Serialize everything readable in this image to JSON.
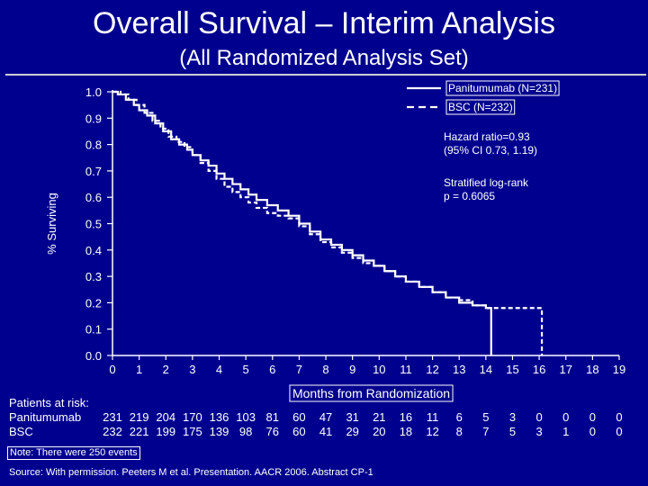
{
  "slide": {
    "title": "Overall Survival – Interim Analysis",
    "subtitle": "(All Randomized Analysis Set)",
    "background": "#00008f"
  },
  "chart_data": {
    "type": "line",
    "xlabel": "Months from Randomization",
    "ylabel": "% Surviving",
    "xlim": [
      0,
      19
    ],
    "ylim": [
      0.0,
      1.0
    ],
    "x_ticks": [
      0,
      1,
      2,
      3,
      4,
      5,
      6,
      7,
      8,
      9,
      10,
      11,
      12,
      13,
      14,
      15,
      16,
      17,
      18,
      19
    ],
    "y_ticks": [
      "0.0",
      "0.1",
      "0.2",
      "0.3",
      "0.4",
      "0.5",
      "0.6",
      "0.7",
      "0.8",
      "0.9",
      "1.0"
    ],
    "grid": false,
    "legend_position": "top-right",
    "series": [
      {
        "name": "Panitumumab (N=231)",
        "style": "solid",
        "color": "#ffffff",
        "points": [
          [
            0,
            1.0
          ],
          [
            0.2,
            0.99
          ],
          [
            0.5,
            0.97
          ],
          [
            0.8,
            0.95
          ],
          [
            1.0,
            0.93
          ],
          [
            1.3,
            0.91
          ],
          [
            1.6,
            0.88
          ],
          [
            1.9,
            0.85
          ],
          [
            2.2,
            0.82
          ],
          [
            2.5,
            0.8
          ],
          [
            2.8,
            0.78
          ],
          [
            3.0,
            0.76
          ],
          [
            3.3,
            0.74
          ],
          [
            3.6,
            0.72
          ],
          [
            3.9,
            0.69
          ],
          [
            4.2,
            0.67
          ],
          [
            4.5,
            0.65
          ],
          [
            4.8,
            0.63
          ],
          [
            5.1,
            0.61
          ],
          [
            5.4,
            0.59
          ],
          [
            5.8,
            0.57
          ],
          [
            6.2,
            0.55
          ],
          [
            6.6,
            0.53
          ],
          [
            7.0,
            0.5
          ],
          [
            7.4,
            0.47
          ],
          [
            7.8,
            0.44
          ],
          [
            8.2,
            0.42
          ],
          [
            8.6,
            0.4
          ],
          [
            9.0,
            0.38
          ],
          [
            9.4,
            0.36
          ],
          [
            9.8,
            0.34
          ],
          [
            10.2,
            0.32
          ],
          [
            10.6,
            0.3
          ],
          [
            11.0,
            0.28
          ],
          [
            11.5,
            0.26
          ],
          [
            12.0,
            0.24
          ],
          [
            12.5,
            0.22
          ],
          [
            13.0,
            0.2
          ],
          [
            13.5,
            0.19
          ],
          [
            14.0,
            0.18
          ],
          [
            14.2,
            0.18
          ],
          [
            14.2,
            0.0
          ]
        ]
      },
      {
        "name": "BSC (N=232)",
        "style": "dashed",
        "color": "#ffffff",
        "points": [
          [
            0,
            1.0
          ],
          [
            0.3,
            0.99
          ],
          [
            0.6,
            0.97
          ],
          [
            0.9,
            0.95
          ],
          [
            1.2,
            0.92
          ],
          [
            1.5,
            0.89
          ],
          [
            1.8,
            0.86
          ],
          [
            2.1,
            0.83
          ],
          [
            2.4,
            0.81
          ],
          [
            2.7,
            0.79
          ],
          [
            3.0,
            0.76
          ],
          [
            3.3,
            0.73
          ],
          [
            3.6,
            0.7
          ],
          [
            3.9,
            0.67
          ],
          [
            4.2,
            0.64
          ],
          [
            4.5,
            0.62
          ],
          [
            4.8,
            0.6
          ],
          [
            5.1,
            0.58
          ],
          [
            5.4,
            0.56
          ],
          [
            5.8,
            0.54
          ],
          [
            6.2,
            0.53
          ],
          [
            6.6,
            0.52
          ],
          [
            7.0,
            0.49
          ],
          [
            7.4,
            0.46
          ],
          [
            7.8,
            0.43
          ],
          [
            8.2,
            0.41
          ],
          [
            8.6,
            0.39
          ],
          [
            9.0,
            0.37
          ],
          [
            9.4,
            0.35
          ],
          [
            9.8,
            0.34
          ],
          [
            10.2,
            0.32
          ],
          [
            10.6,
            0.3
          ],
          [
            11.0,
            0.28
          ],
          [
            11.5,
            0.26
          ],
          [
            12.0,
            0.24
          ],
          [
            12.5,
            0.22
          ],
          [
            13.0,
            0.21
          ],
          [
            13.5,
            0.19
          ],
          [
            14.0,
            0.18
          ],
          [
            15.0,
            0.18
          ],
          [
            16.0,
            0.18
          ],
          [
            16.1,
            0.18
          ],
          [
            16.1,
            0.0
          ]
        ]
      }
    ],
    "annotations": {
      "hazard_line1": "Hazard ratio=0.93",
      "hazard_line2": "(95% CI 0.73, 1.19)",
      "logrank_line1": "Stratified log-rank",
      "logrank_line2": "p = 0.6065"
    }
  },
  "risk_table": {
    "header": "Patients at risk:",
    "rows": [
      {
        "label": "Panitumumab",
        "values": [
          "231",
          "219",
          "204",
          "170",
          "136",
          "103",
          "81",
          "60",
          "47",
          "31",
          "21",
          "16",
          "11",
          "6",
          "5",
          "3",
          "0",
          "0",
          "0",
          "0"
        ]
      },
      {
        "label": "BSC",
        "values": [
          "232",
          "221",
          "199",
          "175",
          "139",
          "98",
          "76",
          "60",
          "41",
          "29",
          "20",
          "18",
          "12",
          "8",
          "7",
          "5",
          "3",
          "1",
          "0",
          "0"
        ]
      }
    ]
  },
  "footer": {
    "note": "Note: There were 250 events",
    "source": "Source: With permission. Peeters M et al. Presentation. AACR 2006. Abstract CP-1"
  }
}
